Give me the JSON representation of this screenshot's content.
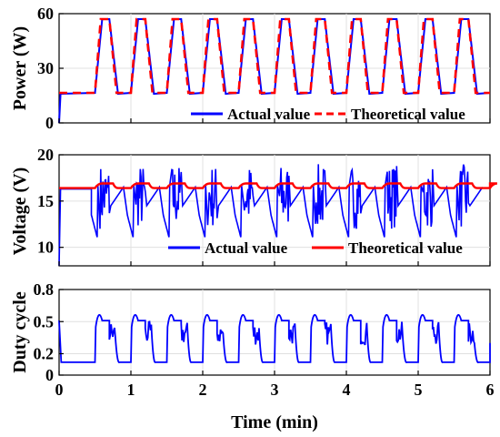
{
  "chart_data": [
    {
      "type": "line",
      "ylabel": "Power (W)",
      "xlim": [
        0,
        6
      ],
      "ylim": [
        0,
        60
      ],
      "xticks": [
        0,
        1,
        2,
        3,
        4,
        5,
        6
      ],
      "yticks": [
        0,
        30,
        60
      ],
      "grid": true,
      "legend_position": "bottom-right",
      "x_values_unit": "min",
      "cycle_period_min": 0.5,
      "high_level": 57,
      "low_level": 16.5,
      "series": [
        {
          "name": "Actual value",
          "color": "#0000ff",
          "style": "solid",
          "points": [
            [
              0,
              0
            ],
            [
              0.02,
              16
            ],
            [
              0.5,
              16.5
            ],
            [
              0.6,
              57
            ],
            [
              0.7,
              57
            ],
            [
              0.82,
              16
            ],
            [
              1.0,
              16.5
            ],
            [
              1.1,
              57
            ],
            [
              1.2,
              57
            ],
            [
              1.32,
              16
            ],
            [
              1.5,
              16.5
            ],
            [
              1.6,
              57
            ],
            [
              1.7,
              57
            ],
            [
              1.82,
              16
            ],
            [
              2.0,
              16.5
            ],
            [
              2.1,
              57
            ],
            [
              2.2,
              57
            ],
            [
              2.32,
              16
            ],
            [
              2.5,
              16.5
            ],
            [
              2.6,
              57
            ],
            [
              2.7,
              57
            ],
            [
              2.82,
              16
            ],
            [
              3.0,
              16.5
            ],
            [
              3.1,
              57
            ],
            [
              3.2,
              57
            ],
            [
              3.32,
              16
            ],
            [
              3.5,
              16.5
            ],
            [
              3.6,
              57
            ],
            [
              3.7,
              57
            ],
            [
              3.82,
              16
            ],
            [
              4.0,
              16.5
            ],
            [
              4.1,
              57
            ],
            [
              4.2,
              57
            ],
            [
              4.32,
              16
            ],
            [
              4.5,
              16.5
            ],
            [
              4.6,
              57
            ],
            [
              4.7,
              57
            ],
            [
              4.82,
              16
            ],
            [
              5.0,
              16.5
            ],
            [
              5.1,
              57
            ],
            [
              5.2,
              57
            ],
            [
              5.32,
              16
            ],
            [
              5.5,
              16.5
            ],
            [
              5.6,
              57
            ],
            [
              5.7,
              57
            ],
            [
              5.82,
              16
            ],
            [
              6.0,
              16.5
            ]
          ]
        },
        {
          "name": "Theoretical value",
          "color": "#ff0000",
          "style": "dashed",
          "points": [
            [
              0,
              16.5
            ],
            [
              0.5,
              16.5
            ],
            [
              0.58,
              57
            ],
            [
              0.7,
              57
            ],
            [
              0.8,
              16.5
            ],
            [
              1.0,
              16.5
            ],
            [
              1.08,
              57
            ],
            [
              1.2,
              57
            ],
            [
              1.3,
              16.5
            ],
            [
              1.5,
              16.5
            ],
            [
              1.58,
              57
            ],
            [
              1.7,
              57
            ],
            [
              1.8,
              16.5
            ],
            [
              2.0,
              16.5
            ],
            [
              2.08,
              57
            ],
            [
              2.2,
              57
            ],
            [
              2.3,
              16.5
            ],
            [
              2.5,
              16.5
            ],
            [
              2.58,
              57
            ],
            [
              2.7,
              57
            ],
            [
              2.8,
              16.5
            ],
            [
              3.0,
              16.5
            ],
            [
              3.08,
              57
            ],
            [
              3.2,
              57
            ],
            [
              3.3,
              16.5
            ],
            [
              3.5,
              16.5
            ],
            [
              3.58,
              57
            ],
            [
              3.7,
              57
            ],
            [
              3.8,
              16.5
            ],
            [
              4.0,
              16.5
            ],
            [
              4.08,
              57
            ],
            [
              4.2,
              57
            ],
            [
              4.3,
              16.5
            ],
            [
              4.5,
              16.5
            ],
            [
              4.58,
              57
            ],
            [
              4.7,
              57
            ],
            [
              4.8,
              16.5
            ],
            [
              5.0,
              16.5
            ],
            [
              5.08,
              57
            ],
            [
              5.2,
              57
            ],
            [
              5.3,
              16.5
            ],
            [
              5.5,
              16.5
            ],
            [
              5.58,
              57
            ],
            [
              5.7,
              57
            ],
            [
              5.8,
              16.5
            ],
            [
              6.0,
              16.5
            ]
          ]
        }
      ]
    },
    {
      "type": "line",
      "ylabel": "Voltage (V)",
      "xlim": [
        0,
        6
      ],
      "ylim": [
        8,
        20
      ],
      "xticks": [
        0,
        1,
        2,
        3,
        4,
        5,
        6
      ],
      "yticks": [
        10,
        15,
        20
      ],
      "grid": true,
      "legend_position": "bottom-right",
      "nominal_level": 16.5,
      "series": [
        {
          "name": "Actual value",
          "color": "#0000ff",
          "style": "solid",
          "description_values": {
            "min": 8,
            "max": 19,
            "typical_range": [
              11,
              18.5
            ]
          }
        },
        {
          "name": "Theoretical value",
          "color": "#ff0000",
          "style": "solid",
          "description_values": {
            "base": 16.4,
            "peak": 16.9
          }
        }
      ]
    },
    {
      "type": "line",
      "ylabel": "Duty cycle",
      "xlabel": "Time (min)",
      "xlim": [
        0,
        6
      ],
      "ylim": [
        0,
        0.8
      ],
      "xticks": [
        0,
        1,
        2,
        3,
        4,
        5,
        6
      ],
      "yticks": [
        0,
        0.2,
        0.5,
        0.8
      ],
      "ytick_labels": [
        "0",
        "0.2",
        "0.5",
        "0.8"
      ],
      "grid": true,
      "series": [
        {
          "color": "#0000ff",
          "style": "solid",
          "description_values": {
            "low": 0.12,
            "high": 0.51,
            "peak": 0.63
          }
        }
      ]
    }
  ],
  "colors": {
    "actual": "#0000ff",
    "theoretical": "#ff0000",
    "grid": "#e0e0e0"
  }
}
